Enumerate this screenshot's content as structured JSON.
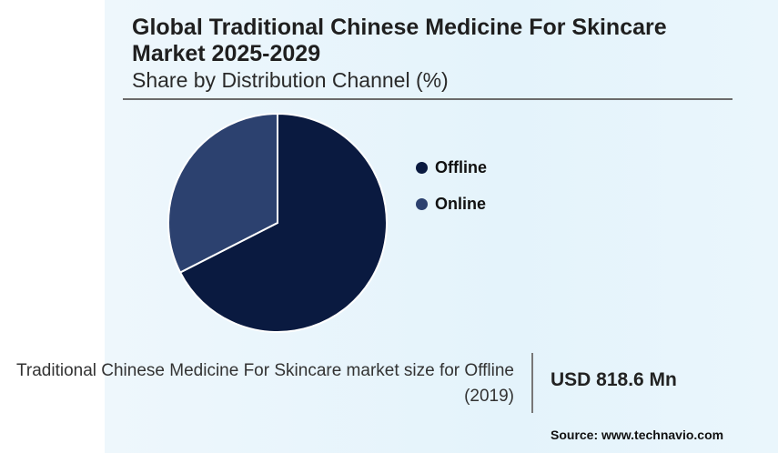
{
  "header": {
    "title": "Global Traditional Chinese Medicine For Skincare Market 2025-2029",
    "subtitle": "Share by Distribution Channel (%)"
  },
  "chart_data": {
    "type": "pie",
    "title": "Global Traditional Chinese Medicine For Skincare Market 2025-2029",
    "subtitle": "Share by Distribution Channel (%)",
    "slices": [
      {
        "label": "Offline",
        "value": 67.5,
        "color": "#0a1a40"
      },
      {
        "label": "Online",
        "value": 32.5,
        "color": "#2c416f"
      }
    ],
    "legend_position": "right",
    "start": "top",
    "direction": "clockwise"
  },
  "footer": {
    "market_note": "Traditional Chinese Medicine For Skincare market size for Offline (2019)",
    "market_value": "USD 818.6 Mn",
    "source": "Source: www.technavio.com"
  }
}
